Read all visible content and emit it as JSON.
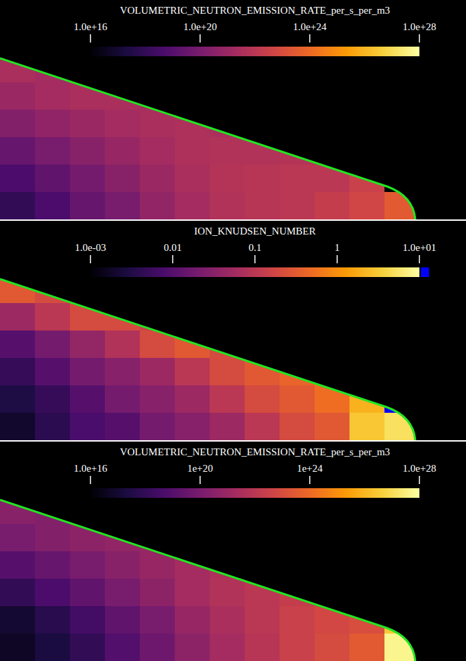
{
  "chart_data": [
    {
      "type": "heatmap",
      "title": "VOLUMETRIC_NEUTRON_EMISSION_RATE_per_s_per_m3",
      "log": true,
      "color_range": [
        1e+16,
        1e+28
      ],
      "color_ticks": [
        {
          "value": 1e+16,
          "label": "1.0e+16"
        },
        {
          "value": 1e+20,
          "label": "1.0e+20"
        },
        {
          "value": 1e+24,
          "label": "1.0e+24"
        },
        {
          "value": 1e+28,
          "label": "1.0e+28"
        }
      ],
      "cells": [
        [
          3e+21,
          2e+21,
          2e+21,
          1e+21,
          1e+21,
          1e+21,
          1e+21,
          1e+21,
          1e+21,
          1e+21,
          1e+21,
          1e+21
        ],
        [
          1e+21,
          2e+21,
          3e+21,
          3e+21,
          2e+21,
          2e+21,
          2e+21,
          2e+21,
          2e+21,
          2e+21,
          2e+21,
          2e+21
        ],
        [
          2e+20,
          5e+20,
          1e+21,
          2e+21,
          3e+21,
          4e+21,
          3e+21,
          3e+21,
          3e+21,
          3e+21,
          3e+21,
          3e+21
        ],
        [
          3e+19,
          1e+20,
          3e+20,
          8e+20,
          2e+21,
          4e+21,
          5e+21,
          5e+21,
          6e+21,
          5e+21,
          8e+21,
          1e+22
        ],
        [
          5e+18,
          2e+19,
          8e+19,
          3e+20,
          1e+21,
          3e+21,
          6e+21,
          8e+21,
          1e+22,
          1e+22,
          3e+22,
          1000000000000000.0
        ],
        [
          1e+18,
          5e+18,
          3e+19,
          1e+20,
          6e+20,
          2e+21,
          5e+21,
          8e+21,
          1e+22,
          2e+22,
          5e+22,
          3e+23
        ]
      ]
    },
    {
      "type": "heatmap",
      "title": "ION_KNUDSEN_NUMBER",
      "log": true,
      "color_range": [
        0.001,
        10
      ],
      "color_ticks": [
        {
          "value": 0.001,
          "label": "1.0e-03"
        },
        0.01,
        0.1,
        1,
        {
          "value": 10,
          "label": "1.0e+01"
        }
      ],
      "cells": [
        [
          0.3,
          0.2,
          0.15,
          0.1,
          0.1,
          0.1,
          0.1,
          0.1,
          0.1,
          0.1,
          0.1,
          0.1
        ],
        [
          0.05,
          0.1,
          0.2,
          0.2,
          0.15,
          0.1,
          0.1,
          0.1,
          0.1,
          0.1,
          0.1,
          0.1
        ],
        [
          0.01,
          0.02,
          0.04,
          0.08,
          0.2,
          0.3,
          0.2,
          0.2,
          0.2,
          0.2,
          0.2,
          0.2
        ],
        [
          0.005,
          0.01,
          0.02,
          0.03,
          0.05,
          0.1,
          0.2,
          0.3,
          0.4,
          0.5,
          0.6,
          0.8
        ],
        [
          0.003,
          0.005,
          0.01,
          0.02,
          0.03,
          0.05,
          0.1,
          0.2,
          0.3,
          0.5,
          2,
          20
        ],
        [
          0.002,
          0.004,
          0.008,
          0.01,
          0.02,
          0.03,
          0.05,
          0.1,
          0.2,
          0.3,
          3,
          5
        ]
      ]
    },
    {
      "type": "heatmap",
      "title": "VOLUMETRIC_NEUTRON_EMISSION_RATE_per_s_per_m3",
      "log": true,
      "color_range": [
        1e+16,
        1e+28
      ],
      "color_ticks": [
        {
          "value": 1e+16,
          "label": "1.0e+16"
        },
        {
          "value": 1e+20,
          "label": "1e+20"
        },
        {
          "value": 1e+24,
          "label": "1e+24"
        },
        {
          "value": 1e+28,
          "label": "1.0e+28"
        }
      ],
      "cells": [
        [
          3e+20,
          2e+20,
          2e+20,
          2e+20,
          2e+20,
          2e+20,
          2e+20,
          2e+20,
          2e+20,
          2e+20,
          2e+20,
          2e+20
        ],
        [
          1e+20,
          2e+20,
          4e+20,
          6e+20,
          8e+20,
          1e+21,
          1e+21,
          1e+21,
          1e+21,
          1e+21,
          1e+21,
          1e+21
        ],
        [
          1e+19,
          3e+19,
          1e+20,
          3e+20,
          8e+20,
          2e+21,
          4e+21,
          6e+21,
          8e+21,
          1e+22,
          1e+22,
          1e+22
        ],
        [
          1e+18,
          5e+18,
          2e+19,
          1e+20,
          4e+20,
          2e+21,
          5e+21,
          1e+22,
          2e+22,
          3e+22,
          4e+22,
          5e+22
        ],
        [
          1e+17,
          5e+17,
          3e+18,
          2e+19,
          1e+20,
          8e+20,
          3e+21,
          1e+22,
          3e+22,
          6e+22,
          1e+23,
          3e+26
        ],
        [
          5e+16,
          2e+17,
          1e+18,
          8e+18,
          5e+19,
          4e+20,
          2e+21,
          8e+21,
          3e+22,
          8e+22,
          3e+23,
          5e+27
        ]
      ]
    }
  ]
}
